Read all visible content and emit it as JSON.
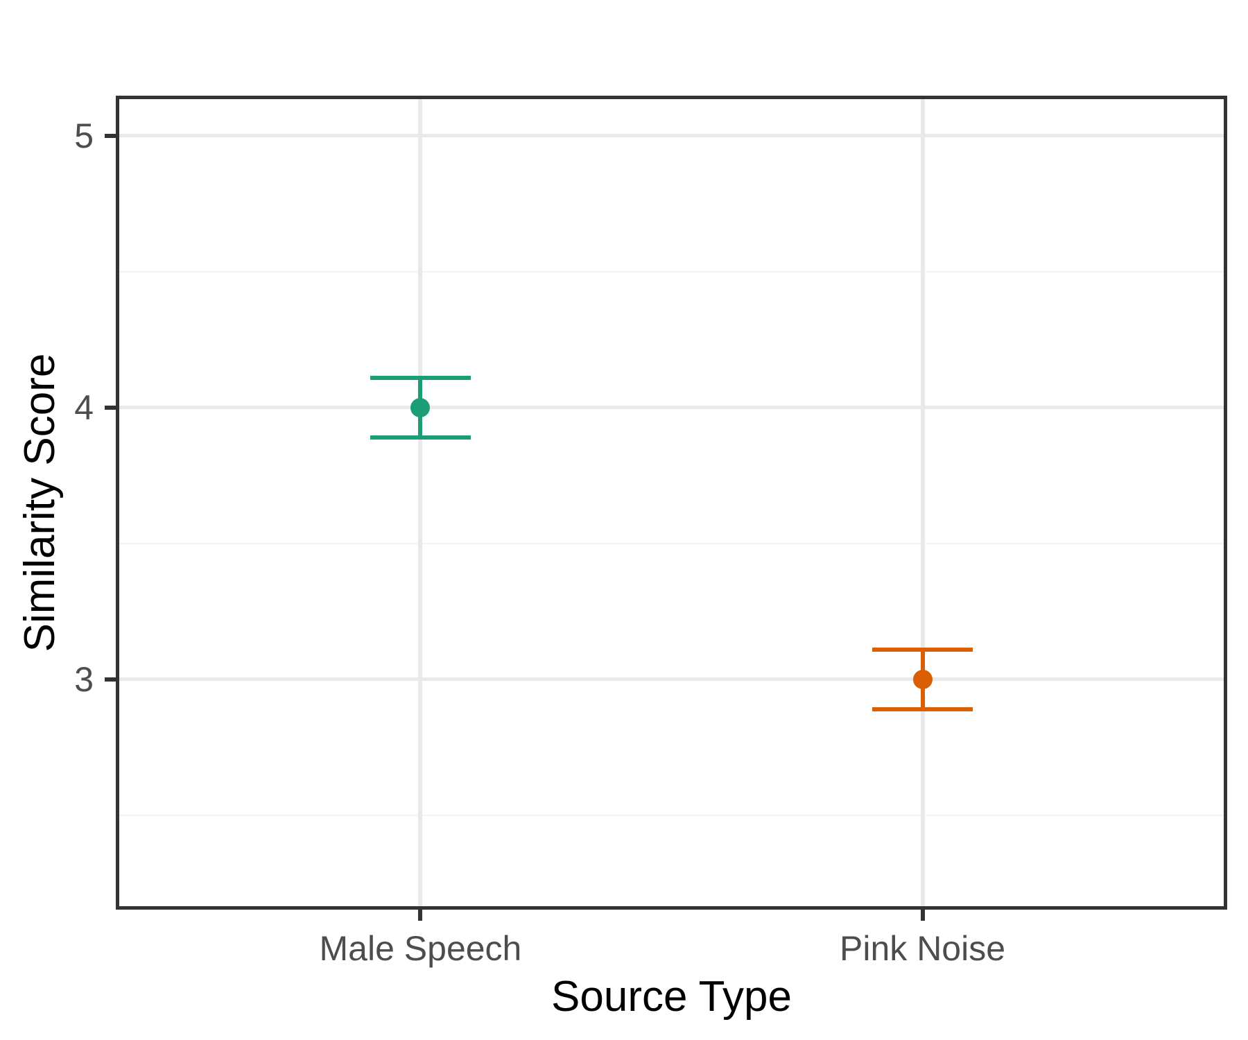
{
  "chart_data": {
    "type": "scatter",
    "subtype": "point-with-errorbar",
    "title": "",
    "xlabel": "Source Type",
    "ylabel": "Similarity Score",
    "categories": [
      "Male Speech",
      "Pink Noise"
    ],
    "x_values": [
      1,
      2
    ],
    "xlim": [
      0.4,
      2.6
    ],
    "ylim": [
      2.165,
      5.135
    ],
    "y_major_ticks": [
      3,
      4,
      5
    ],
    "y_minor_ticks": [
      2.5,
      3.5,
      4.5
    ],
    "grid": true,
    "legend": false,
    "errorbar_cap_width": 0.2,
    "series": [
      {
        "name": "Male Speech",
        "y": 4.0,
        "ymin": 3.89,
        "ymax": 4.11,
        "color": "#1b9e77"
      },
      {
        "name": "Pink Noise",
        "y": 3.0,
        "ymin": 2.89,
        "ymax": 3.11,
        "color": "#d95f02"
      }
    ]
  },
  "style": {
    "panel_border_color": "#333333",
    "tick_color": "#333333",
    "grid_major_color": "#e9e9e9",
    "grid_minor_color": "#f3f3f3",
    "tick_label_color": "#4d4d4d",
    "axis_title_color": "#000000",
    "background": "#ffffff"
  }
}
